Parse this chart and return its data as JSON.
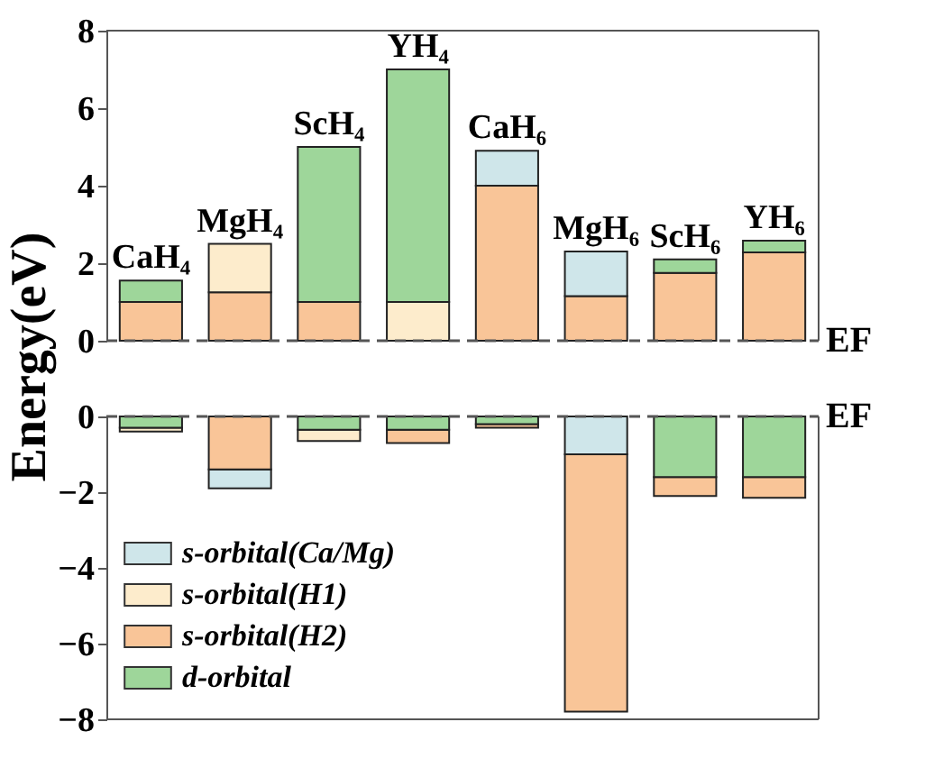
{
  "chart_data": [
    {
      "type": "bar",
      "ylabel": "Energy(eV)",
      "categories": [
        "CaH₄",
        "MgH₄",
        "ScH₄",
        "YH₄",
        "CaH₆",
        "MgH₆",
        "ScH₆",
        "YH₆"
      ],
      "ylim": [
        0,
        8
      ],
      "yticks": [
        0,
        2,
        4,
        6,
        8
      ],
      "grid": false,
      "series": [
        {
          "color": "#f9c598",
          "base": [
            0,
            0,
            0,
            null,
            0,
            0,
            0,
            0
          ],
          "values": [
            1,
            1.25,
            1,
            null,
            4,
            1.15,
            1.75,
            2.28
          ]
        },
        {
          "color": "#fdeccc",
          "base": [
            null,
            1.25,
            null,
            0,
            null,
            null,
            null,
            null
          ],
          "values": [
            null,
            1.25,
            null,
            1,
            null,
            null,
            null,
            null
          ]
        },
        {
          "color": "#cfe6ea",
          "base": [
            null,
            null,
            null,
            null,
            4,
            1.15,
            null,
            null
          ],
          "values": [
            null,
            null,
            null,
            null,
            0.9,
            1.15,
            null,
            null
          ]
        },
        {
          "color": "#9ed69a",
          "base": [
            1,
            null,
            1,
            1,
            null,
            null,
            1.75,
            2.28
          ],
          "values": [
            0.55,
            null,
            4,
            6,
            null,
            null,
            0.35,
            0.3
          ]
        }
      ],
      "ref_lines": [
        {
          "axis": "y",
          "value": 0,
          "label": "EF",
          "line_style": "dashed"
        }
      ]
    },
    {
      "type": "bar",
      "categories": [
        null,
        null,
        null,
        null,
        null,
        null,
        null,
        null
      ],
      "tick_labels": "y",
      "ylim": [
        -8,
        0
      ],
      "yticks": [
        -8,
        -6,
        -4,
        -2,
        0
      ],
      "grid": false,
      "legend": "bottom left",
      "series": [
        {
          "name": "s-orbital(Ca/Mg)",
          "color": "#cfe6ea",
          "base": [
            null,
            -1.4,
            null,
            null,
            null,
            0,
            null,
            null
          ],
          "values": [
            null,
            -0.5,
            null,
            null,
            null,
            -1,
            null,
            null
          ]
        },
        {
          "name": "s-orbital(H1)",
          "color": "#fdeccc",
          "base": [
            -0.3,
            null,
            -0.35,
            null,
            null,
            null,
            null,
            null
          ],
          "values": [
            -0.1,
            null,
            -0.3,
            null,
            null,
            null,
            null,
            null
          ]
        },
        {
          "name": "s-orbital(H2)",
          "color": "#f9c598",
          "base": [
            null,
            0,
            null,
            -0.35,
            -0.2,
            -1,
            -1.6,
            -1.6
          ],
          "values": [
            null,
            -1.4,
            null,
            -0.35,
            -0.1,
            -6.8,
            -0.5,
            -0.55
          ]
        },
        {
          "name": "d-orbital",
          "color": "#9ed69a",
          "base": [
            0,
            null,
            0,
            0,
            0,
            null,
            0,
            0
          ],
          "values": [
            -0.3,
            null,
            -0.35,
            -0.35,
            -0.2,
            null,
            -1.6,
            -1.6
          ]
        }
      ],
      "ref_lines": [
        {
          "axis": "y",
          "value": 0,
          "label": "EF",
          "line_style": "dashed"
        }
      ]
    }
  ]
}
